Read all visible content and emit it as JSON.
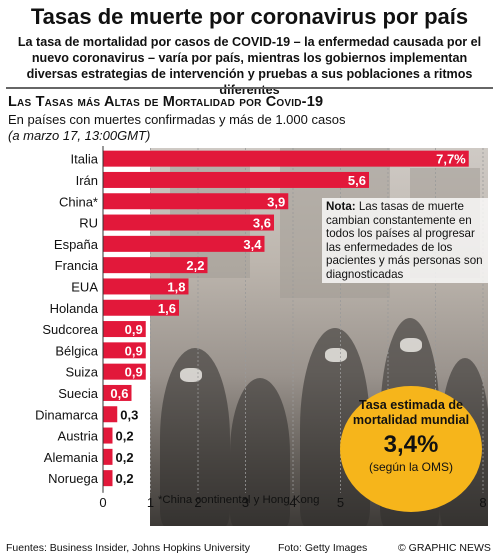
{
  "header": {
    "title": "Tasas de muerte por coronavirus por país",
    "intro": "La tasa de mortalidad por casos de COVID-19 – la enfermedad causada por el nuevo coronavirus – varía por país, mientras los gobiernos implementan diversas estrategias de intervención y pruebas a sus poblaciones a ritmos diferentes"
  },
  "chart_data": {
    "type": "bar",
    "orientation": "horizontal",
    "title": "Las Tasas más Altas de Mortalidad por Covid-19",
    "subtitle": "En países con muertes confirmadas y más de 1.000 casos",
    "date": "(a marzo 17, 13:00GMT)",
    "unit": "%",
    "categories": [
      "Italia",
      "Irán",
      "China*",
      "RU",
      "España",
      "Francia",
      "EUA",
      "Holanda",
      "Sudcorea",
      "Bélgica",
      "Suiza",
      "Suecia",
      "Dinamarca",
      "Austria",
      "Alemania",
      "Noruega"
    ],
    "values": [
      7.7,
      5.6,
      3.9,
      3.6,
      3.4,
      2.2,
      1.8,
      1.6,
      0.9,
      0.9,
      0.9,
      0.6,
      0.3,
      0.2,
      0.2,
      0.2
    ],
    "value_labels": [
      "7,7%",
      "5,6",
      "3,9",
      "3,6",
      "3,4",
      "2,2",
      "1,8",
      "1,6",
      "0,9",
      "0,9",
      "0,9",
      "0,6",
      "0,3",
      "0,2",
      "0,2",
      "0,2"
    ],
    "xlim": [
      0,
      8
    ],
    "xticks": [
      "0",
      "1",
      "2",
      "3",
      "4",
      "5",
      "6",
      "7",
      "8"
    ],
    "bar_color": "#e2183a",
    "grid": true
  },
  "note": {
    "label": "Nota:",
    "text": "Las tasas de muerte cambian constantemente en todos los países al progresar las enfermedades de los pacientes y más personas son diagnosticadas"
  },
  "footnote": "*China continental y Hong Kong",
  "badge": {
    "label": "Tasa estimada de mortalidad mundial",
    "value": "3,4%",
    "source": "(según la OMS)",
    "color": "#f6b51b"
  },
  "footer": {
    "sources": "Fuentes: Business Insider, Johns Hopkins University",
    "photo": "Foto: Getty Images",
    "credit": "© GRAPHIC NEWS"
  }
}
